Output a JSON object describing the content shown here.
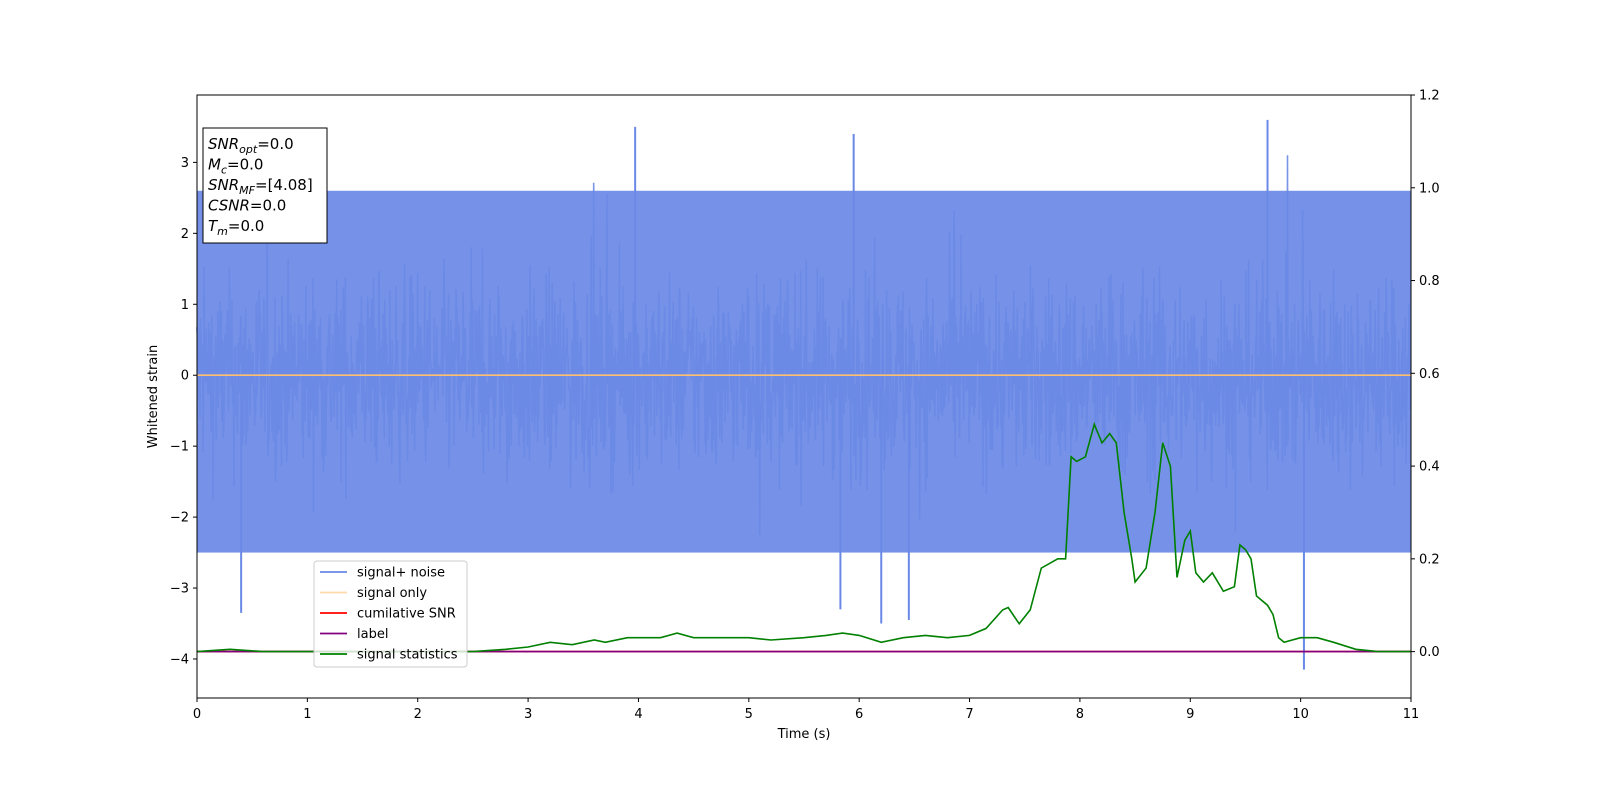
{
  "chart_data": {
    "type": "line",
    "xlabel": "Time (s)",
    "ylabel": "Whitened strain",
    "xlim": [
      0,
      11
    ],
    "ylim": [
      -4.55,
      3.95
    ],
    "y2lim": [
      -0.1,
      1.2
    ],
    "x_ticks": [
      "0",
      "1",
      "2",
      "3",
      "4",
      "5",
      "6",
      "7",
      "8",
      "9",
      "10",
      "11"
    ],
    "y_ticks": [
      "−4",
      "−3",
      "−2",
      "−1",
      "0",
      "1",
      "2",
      "3"
    ],
    "y2_ticks": [
      "0.0",
      "0.2",
      "0.4",
      "0.6",
      "0.8",
      "1.0",
      "1.2"
    ],
    "legend_position": "lower-left",
    "info_box": {
      "position": "top-left",
      "lines": [
        {
          "name": "SNR",
          "sub": "opt",
          "value": "=0.0"
        },
        {
          "name": "M",
          "sub": "c",
          "value": "=0.0"
        },
        {
          "name": "SNR",
          "sub": "MF",
          "value": "=[4.08]"
        },
        {
          "name": "CSNR",
          "sub": "",
          "value": "=0.0"
        },
        {
          "name": "T",
          "sub": "m",
          "value": "=0.0"
        }
      ]
    },
    "series": [
      {
        "name": "signal+ noise",
        "color": "#6a89e6",
        "axis": "left",
        "kind": "noise",
        "approx_envelope": [
          -2.5,
          2.6
        ],
        "notable_peaks": [
          [
            3.97,
            3.5
          ],
          [
            5.95,
            3.4
          ],
          [
            9.7,
            3.6
          ],
          [
            0.4,
            -3.35
          ],
          [
            5.83,
            -3.3
          ],
          [
            6.2,
            -3.5
          ],
          [
            6.45,
            -3.45
          ],
          [
            10.03,
            -4.15
          ]
        ]
      },
      {
        "name": "signal only",
        "color": "#ffbf70",
        "axis": "left",
        "x": [
          0,
          11
        ],
        "y": [
          0,
          0
        ]
      },
      {
        "name": "cumilative SNR",
        "color": "#ff0000",
        "axis": "right",
        "x": [
          0,
          11
        ],
        "y": [
          0,
          0
        ]
      },
      {
        "name": "label",
        "color": "#800080",
        "axis": "right",
        "x": [
          0,
          11
        ],
        "y": [
          0,
          0
        ]
      },
      {
        "name": "signal statistics",
        "color": "#008000",
        "axis": "right",
        "x": [
          0,
          0.3,
          0.6,
          1.0,
          1.5,
          2.0,
          2.5,
          2.8,
          3.0,
          3.2,
          3.4,
          3.6,
          3.7,
          3.9,
          4.2,
          4.35,
          4.5,
          4.8,
          5.0,
          5.2,
          5.5,
          5.7,
          5.85,
          6.0,
          6.2,
          6.4,
          6.6,
          6.8,
          7.0,
          7.15,
          7.3,
          7.35,
          7.45,
          7.55,
          7.65,
          7.8,
          7.87,
          7.92,
          7.97,
          8.05,
          8.13,
          8.2,
          8.27,
          8.33,
          8.4,
          8.47,
          8.5,
          8.6,
          8.68,
          8.75,
          8.82,
          8.88,
          8.95,
          9.0,
          9.05,
          9.12,
          9.2,
          9.3,
          9.4,
          9.45,
          9.5,
          9.55,
          9.6,
          9.7,
          9.75,
          9.8,
          9.85,
          10.0,
          10.15,
          10.3,
          10.5,
          10.7,
          11.0
        ],
        "y": [
          0.0,
          0.005,
          0.0,
          0.0,
          0.0,
          0.0,
          0.0,
          0.005,
          0.01,
          0.02,
          0.015,
          0.025,
          0.02,
          0.03,
          0.03,
          0.04,
          0.03,
          0.03,
          0.03,
          0.025,
          0.03,
          0.035,
          0.04,
          0.035,
          0.02,
          0.03,
          0.035,
          0.03,
          0.035,
          0.05,
          0.09,
          0.095,
          0.06,
          0.09,
          0.18,
          0.2,
          0.2,
          0.42,
          0.41,
          0.42,
          0.49,
          0.45,
          0.47,
          0.45,
          0.3,
          0.2,
          0.15,
          0.18,
          0.3,
          0.45,
          0.4,
          0.16,
          0.24,
          0.26,
          0.17,
          0.15,
          0.17,
          0.13,
          0.14,
          0.23,
          0.22,
          0.2,
          0.12,
          0.1,
          0.08,
          0.03,
          0.02,
          0.03,
          0.03,
          0.02,
          0.005,
          0.0,
          0.0
        ]
      }
    ]
  }
}
